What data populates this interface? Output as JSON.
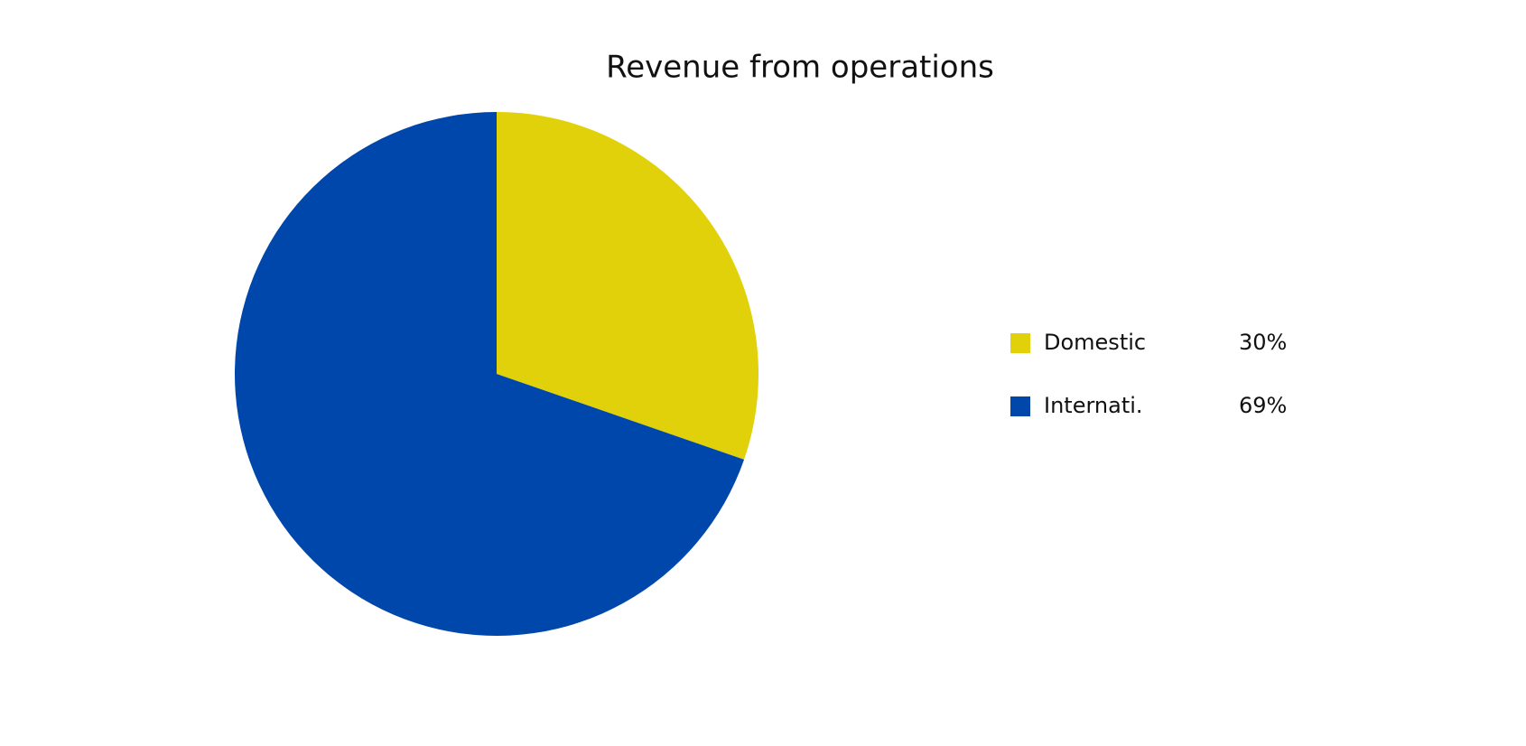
{
  "chart_data": {
    "type": "pie",
    "title": "Revenue from operations",
    "categories": [
      "Domestic",
      "Internati."
    ],
    "values": [
      30,
      69
    ],
    "value_labels": [
      "30%",
      "69%"
    ],
    "colors": [
      "#e1d10a",
      "#0047ab"
    ]
  }
}
